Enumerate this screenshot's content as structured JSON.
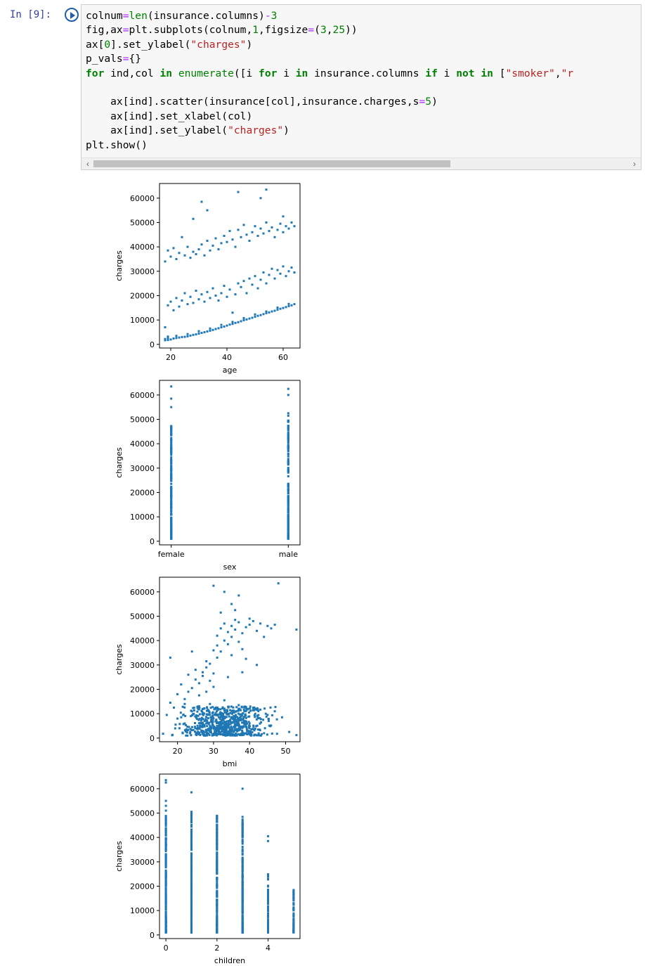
{
  "cell": {
    "prompt": "In [9]:",
    "code_lines": [
      [
        [
          "plain",
          "colnum"
        ],
        [
          "op",
          "="
        ],
        [
          "bi",
          "len"
        ],
        [
          "plain",
          "(insurance.columns)"
        ],
        [
          "op",
          "-"
        ],
        [
          "num",
          "3"
        ]
      ],
      [
        [
          "plain",
          "fig,ax"
        ],
        [
          "op",
          "="
        ],
        [
          "plain",
          "plt.subplots(colnum,"
        ],
        [
          "num",
          "1"
        ],
        [
          "plain",
          ",figsize"
        ],
        [
          "op",
          "="
        ],
        [
          "plain",
          "("
        ],
        [
          "num",
          "3"
        ],
        [
          "plain",
          ","
        ],
        [
          "num",
          "25"
        ],
        [
          "plain",
          "))"
        ]
      ],
      [
        [
          "plain",
          "ax["
        ],
        [
          "num",
          "0"
        ],
        [
          "plain",
          "].set_ylabel("
        ],
        [
          "str",
          "\"charges\""
        ],
        [
          "plain",
          ")"
        ]
      ],
      [
        [
          "plain",
          "p_vals"
        ],
        [
          "op",
          "="
        ],
        [
          "plain",
          "{}"
        ]
      ],
      [
        [
          "kw",
          "for"
        ],
        [
          "plain",
          " ind,col "
        ],
        [
          "kw",
          "in"
        ],
        [
          "plain",
          " "
        ],
        [
          "bi",
          "enumerate"
        ],
        [
          "plain",
          "([i "
        ],
        [
          "kw",
          "for"
        ],
        [
          "plain",
          " i "
        ],
        [
          "kw",
          "in"
        ],
        [
          "plain",
          " insurance.columns "
        ],
        [
          "kw",
          "if"
        ],
        [
          "plain",
          " i "
        ],
        [
          "kw",
          "not in"
        ],
        [
          "plain",
          " ["
        ],
        [
          "str",
          "\"smoker\""
        ],
        [
          "plain",
          ","
        ],
        [
          "str",
          "\"r"
        ]
      ],
      [],
      [
        [
          "plain",
          "    ax[ind].scatter(insurance[col],insurance.charges,s"
        ],
        [
          "op",
          "="
        ],
        [
          "num",
          "5"
        ],
        [
          "plain",
          ")"
        ]
      ],
      [
        [
          "plain",
          "    ax[ind].set_xlabel(col)"
        ]
      ],
      [
        [
          "plain",
          "    ax[ind].set_ylabel("
        ],
        [
          "str",
          "\"charges\""
        ],
        [
          "plain",
          ")"
        ]
      ],
      [
        [
          "plain",
          "plt.show()"
        ]
      ]
    ],
    "scroll_left": "‹",
    "scroll_right": "›"
  },
  "chart_data": [
    {
      "type": "scatter",
      "xlabel": "age",
      "ylabel": "charges",
      "xlim": [
        16,
        66
      ],
      "ylim": [
        -1500,
        66000
      ],
      "xticks": [
        20,
        40,
        60
      ],
      "yticks": [
        0,
        10000,
        20000,
        30000,
        40000,
        50000,
        60000
      ],
      "points": [
        [
          18,
          1700
        ],
        [
          18,
          2200
        ],
        [
          19,
          1800
        ],
        [
          19,
          2500
        ],
        [
          20,
          2000
        ],
        [
          21,
          2400
        ],
        [
          22,
          2600
        ],
        [
          23,
          2800
        ],
        [
          24,
          3000
        ],
        [
          25,
          3100
        ],
        [
          26,
          3300
        ],
        [
          27,
          3600
        ],
        [
          28,
          3900
        ],
        [
          29,
          4100
        ],
        [
          30,
          4400
        ],
        [
          31,
          4700
        ],
        [
          32,
          5000
        ],
        [
          33,
          5300
        ],
        [
          34,
          5600
        ],
        [
          35,
          5900
        ],
        [
          36,
          6300
        ],
        [
          37,
          6600
        ],
        [
          38,
          7000
        ],
        [
          39,
          7300
        ],
        [
          40,
          7700
        ],
        [
          41,
          8100
        ],
        [
          42,
          8400
        ],
        [
          43,
          8800
        ],
        [
          44,
          9100
        ],
        [
          45,
          9500
        ],
        [
          46,
          9900
        ],
        [
          47,
          10200
        ],
        [
          48,
          10600
        ],
        [
          49,
          10900
        ],
        [
          50,
          11300
        ],
        [
          51,
          11700
        ],
        [
          52,
          12000
        ],
        [
          53,
          12400
        ],
        [
          54,
          12800
        ],
        [
          55,
          13100
        ],
        [
          56,
          13500
        ],
        [
          57,
          13800
        ],
        [
          58,
          14200
        ],
        [
          59,
          14600
        ],
        [
          60,
          14900
        ],
        [
          61,
          15300
        ],
        [
          62,
          15700
        ],
        [
          63,
          16000
        ],
        [
          64,
          16500
        ],
        [
          19,
          3200
        ],
        [
          22,
          3500
        ],
        [
          26,
          4200
        ],
        [
          30,
          5400
        ],
        [
          34,
          6500
        ],
        [
          38,
          8000
        ],
        [
          42,
          9200
        ],
        [
          46,
          10800
        ],
        [
          50,
          12300
        ],
        [
          54,
          13500
        ],
        [
          58,
          15100
        ],
        [
          62,
          16600
        ],
        [
          18,
          7000
        ],
        [
          19,
          16000
        ],
        [
          20,
          17500
        ],
        [
          21,
          14000
        ],
        [
          22,
          19000
        ],
        [
          23,
          15500
        ],
        [
          24,
          18000
        ],
        [
          25,
          21000
        ],
        [
          26,
          16500
        ],
        [
          27,
          19500
        ],
        [
          28,
          17000
        ],
        [
          29,
          22000
        ],
        [
          30,
          18500
        ],
        [
          31,
          20500
        ],
        [
          32,
          17500
        ],
        [
          33,
          21500
        ],
        [
          34,
          19000
        ],
        [
          35,
          23000
        ],
        [
          36,
          20000
        ],
        [
          37,
          18000
        ],
        [
          38,
          21000
        ],
        [
          39,
          24000
        ],
        [
          40,
          19500
        ],
        [
          41,
          22500
        ],
        [
          42,
          13000
        ],
        [
          43,
          20500
        ],
        [
          44,
          25000
        ],
        [
          45,
          23500
        ],
        [
          46,
          26000
        ],
        [
          47,
          21000
        ],
        [
          48,
          27000
        ],
        [
          49,
          24500
        ],
        [
          50,
          28000
        ],
        [
          51,
          23000
        ],
        [
          52,
          26500
        ],
        [
          53,
          29500
        ],
        [
          54,
          25000
        ],
        [
          55,
          28500
        ],
        [
          56,
          31000
        ],
        [
          57,
          27000
        ],
        [
          58,
          30500
        ],
        [
          59,
          29000
        ],
        [
          60,
          32000
        ],
        [
          61,
          28000
        ],
        [
          62,
          30000
        ],
        [
          63,
          31500
        ],
        [
          64,
          29500
        ],
        [
          18,
          34000
        ],
        [
          19,
          38500
        ],
        [
          20,
          36000
        ],
        [
          21,
          39500
        ],
        [
          22,
          35000
        ],
        [
          23,
          37500
        ],
        [
          24,
          44000
        ],
        [
          25,
          36500
        ],
        [
          26,
          40000
        ],
        [
          27,
          35500
        ],
        [
          28,
          38000
        ],
        [
          29,
          37000
        ],
        [
          30,
          39000
        ],
        [
          31,
          41000
        ],
        [
          32,
          36500
        ],
        [
          33,
          42500
        ],
        [
          34,
          38500
        ],
        [
          35,
          40500
        ],
        [
          36,
          43500
        ],
        [
          37,
          39000
        ],
        [
          38,
          41500
        ],
        [
          39,
          44500
        ],
        [
          40,
          42000
        ],
        [
          41,
          46500
        ],
        [
          42,
          43000
        ],
        [
          43,
          40000
        ],
        [
          44,
          47000
        ],
        [
          45,
          44000
        ],
        [
          46,
          49000
        ],
        [
          47,
          45000
        ],
        [
          48,
          42500
        ],
        [
          49,
          46000
        ],
        [
          50,
          48500
        ],
        [
          51,
          44500
        ],
        [
          52,
          47500
        ],
        [
          53,
          45500
        ],
        [
          54,
          50000
        ],
        [
          55,
          46500
        ],
        [
          56,
          48000
        ],
        [
          57,
          44000
        ],
        [
          58,
          47000
        ],
        [
          59,
          49500
        ],
        [
          60,
          46000
        ],
        [
          61,
          48500
        ],
        [
          62,
          47500
        ],
        [
          63,
          50000
        ],
        [
          64,
          48500
        ],
        [
          31,
          58500
        ],
        [
          33,
          55000
        ],
        [
          28,
          51500
        ],
        [
          44,
          62500
        ],
        [
          52,
          60000
        ],
        [
          54,
          63500
        ],
        [
          60,
          52500
        ]
      ]
    },
    {
      "type": "scatter",
      "xlabel": "sex",
      "ylabel": "charges",
      "xlim": [
        -0.1,
        1.1
      ],
      "ylim": [
        -1500,
        66000
      ],
      "xticks": [
        "female",
        "male"
      ],
      "yticks": [
        0,
        10000,
        20000,
        30000,
        40000,
        50000,
        60000
      ],
      "columns": [
        {
          "x": 0,
          "max": 48500,
          "outliers": [
            55000,
            58500,
            63500
          ]
        },
        {
          "x": 1,
          "max": 49500,
          "outliers": [
            51500,
            52500,
            60000,
            62500
          ]
        }
      ]
    },
    {
      "type": "scatter",
      "xlabel": "bmi",
      "ylabel": "charges",
      "xlim": [
        15,
        54
      ],
      "ylim": [
        -1500,
        66000
      ],
      "xticks": [
        20,
        30,
        40,
        50
      ],
      "yticks": [
        0,
        10000,
        20000,
        30000,
        40000,
        50000,
        60000
      ],
      "points": [
        [
          16,
          1800
        ],
        [
          17,
          9500
        ],
        [
          18,
          14500
        ],
        [
          19,
          12500
        ],
        [
          20,
          8000
        ],
        [
          20,
          18000
        ],
        [
          21,
          22000
        ],
        [
          22,
          16000
        ],
        [
          22,
          6000
        ],
        [
          23,
          19000
        ],
        [
          23,
          26000
        ],
        [
          24,
          20500
        ],
        [
          24,
          11000
        ],
        [
          25,
          24000
        ],
        [
          25,
          28000
        ],
        [
          26,
          17500
        ],
        [
          26,
          22500
        ],
        [
          27,
          27000
        ],
        [
          27,
          25500
        ],
        [
          28,
          19000
        ],
        [
          28,
          29000
        ],
        [
          29,
          23500
        ],
        [
          29,
          30500
        ],
        [
          30,
          26500
        ],
        [
          30,
          36000
        ],
        [
          31,
          38000
        ],
        [
          31,
          42000
        ],
        [
          32,
          45000
        ],
        [
          32,
          35500
        ],
        [
          33,
          47000
        ],
        [
          33,
          40000
        ],
        [
          34,
          43500
        ],
        [
          34,
          38500
        ],
        [
          35,
          46000
        ],
        [
          35,
          41500
        ],
        [
          36,
          44500
        ],
        [
          36,
          48500
        ],
        [
          37,
          39500
        ],
        [
          37,
          47500
        ],
        [
          38,
          43000
        ],
        [
          38,
          36500
        ],
        [
          39,
          45500
        ],
        [
          40,
          46500
        ],
        [
          41,
          48000
        ],
        [
          42,
          44000
        ],
        [
          43,
          47000
        ],
        [
          44,
          41500
        ],
        [
          45,
          46000
        ],
        [
          46,
          45000
        ],
        [
          47,
          46500
        ],
        [
          48,
          63500
        ],
        [
          53,
          44500
        ],
        [
          53,
          1200
        ],
        [
          18,
          33000
        ],
        [
          24,
          35500
        ],
        [
          30,
          62500
        ],
        [
          33,
          60000
        ],
        [
          37,
          58500
        ],
        [
          35,
          55000
        ],
        [
          32,
          51500
        ],
        [
          36,
          52500
        ],
        [
          40,
          49000
        ],
        [
          22,
          14000
        ],
        [
          26,
          13000
        ],
        [
          30,
          21000
        ],
        [
          34,
          25000
        ],
        [
          38,
          27000
        ],
        [
          42,
          30000
        ],
        [
          39,
          32500
        ],
        [
          28,
          31500
        ],
        [
          31,
          33000
        ],
        [
          35,
          34000
        ],
        [
          29,
          14000
        ],
        [
          33,
          15500
        ],
        [
          37,
          13500
        ],
        [
          41,
          12500
        ],
        [
          45,
          9500
        ],
        [
          49,
          8500
        ],
        [
          51,
          2500
        ],
        [
          47,
          11000
        ]
      ],
      "dense_region": {
        "x": [
          16,
          50
        ],
        "y": [
          1000,
          13000
        ]
      }
    },
    {
      "type": "scatter",
      "xlabel": "children",
      "ylabel": "charges",
      "xlim": [
        -0.25,
        5.25
      ],
      "ylim": [
        -1500,
        66000
      ],
      "xticks": [
        0,
        2,
        4
      ],
      "yticks": [
        0,
        10000,
        20000,
        30000,
        40000,
        50000,
        60000
      ],
      "columns": [
        {
          "x": 0,
          "max": 49000,
          "outliers": [
            51000,
            53000,
            55000,
            62500,
            63500
          ]
        },
        {
          "x": 1,
          "max": 51000,
          "outliers": [
            58500
          ]
        },
        {
          "x": 2,
          "max": 49500,
          "outliers": []
        },
        {
          "x": 3,
          "max": 48500,
          "outliers": [
            60000
          ]
        },
        {
          "x": 4,
          "max": 25000,
          "outliers": [
            38500,
            40500
          ]
        },
        {
          "x": 5,
          "max": 19500,
          "outliers": []
        }
      ]
    }
  ],
  "colors": {
    "marker": "#1f77b4",
    "prompt": "#303f9f",
    "cell_bg": "#f7f7f7"
  }
}
